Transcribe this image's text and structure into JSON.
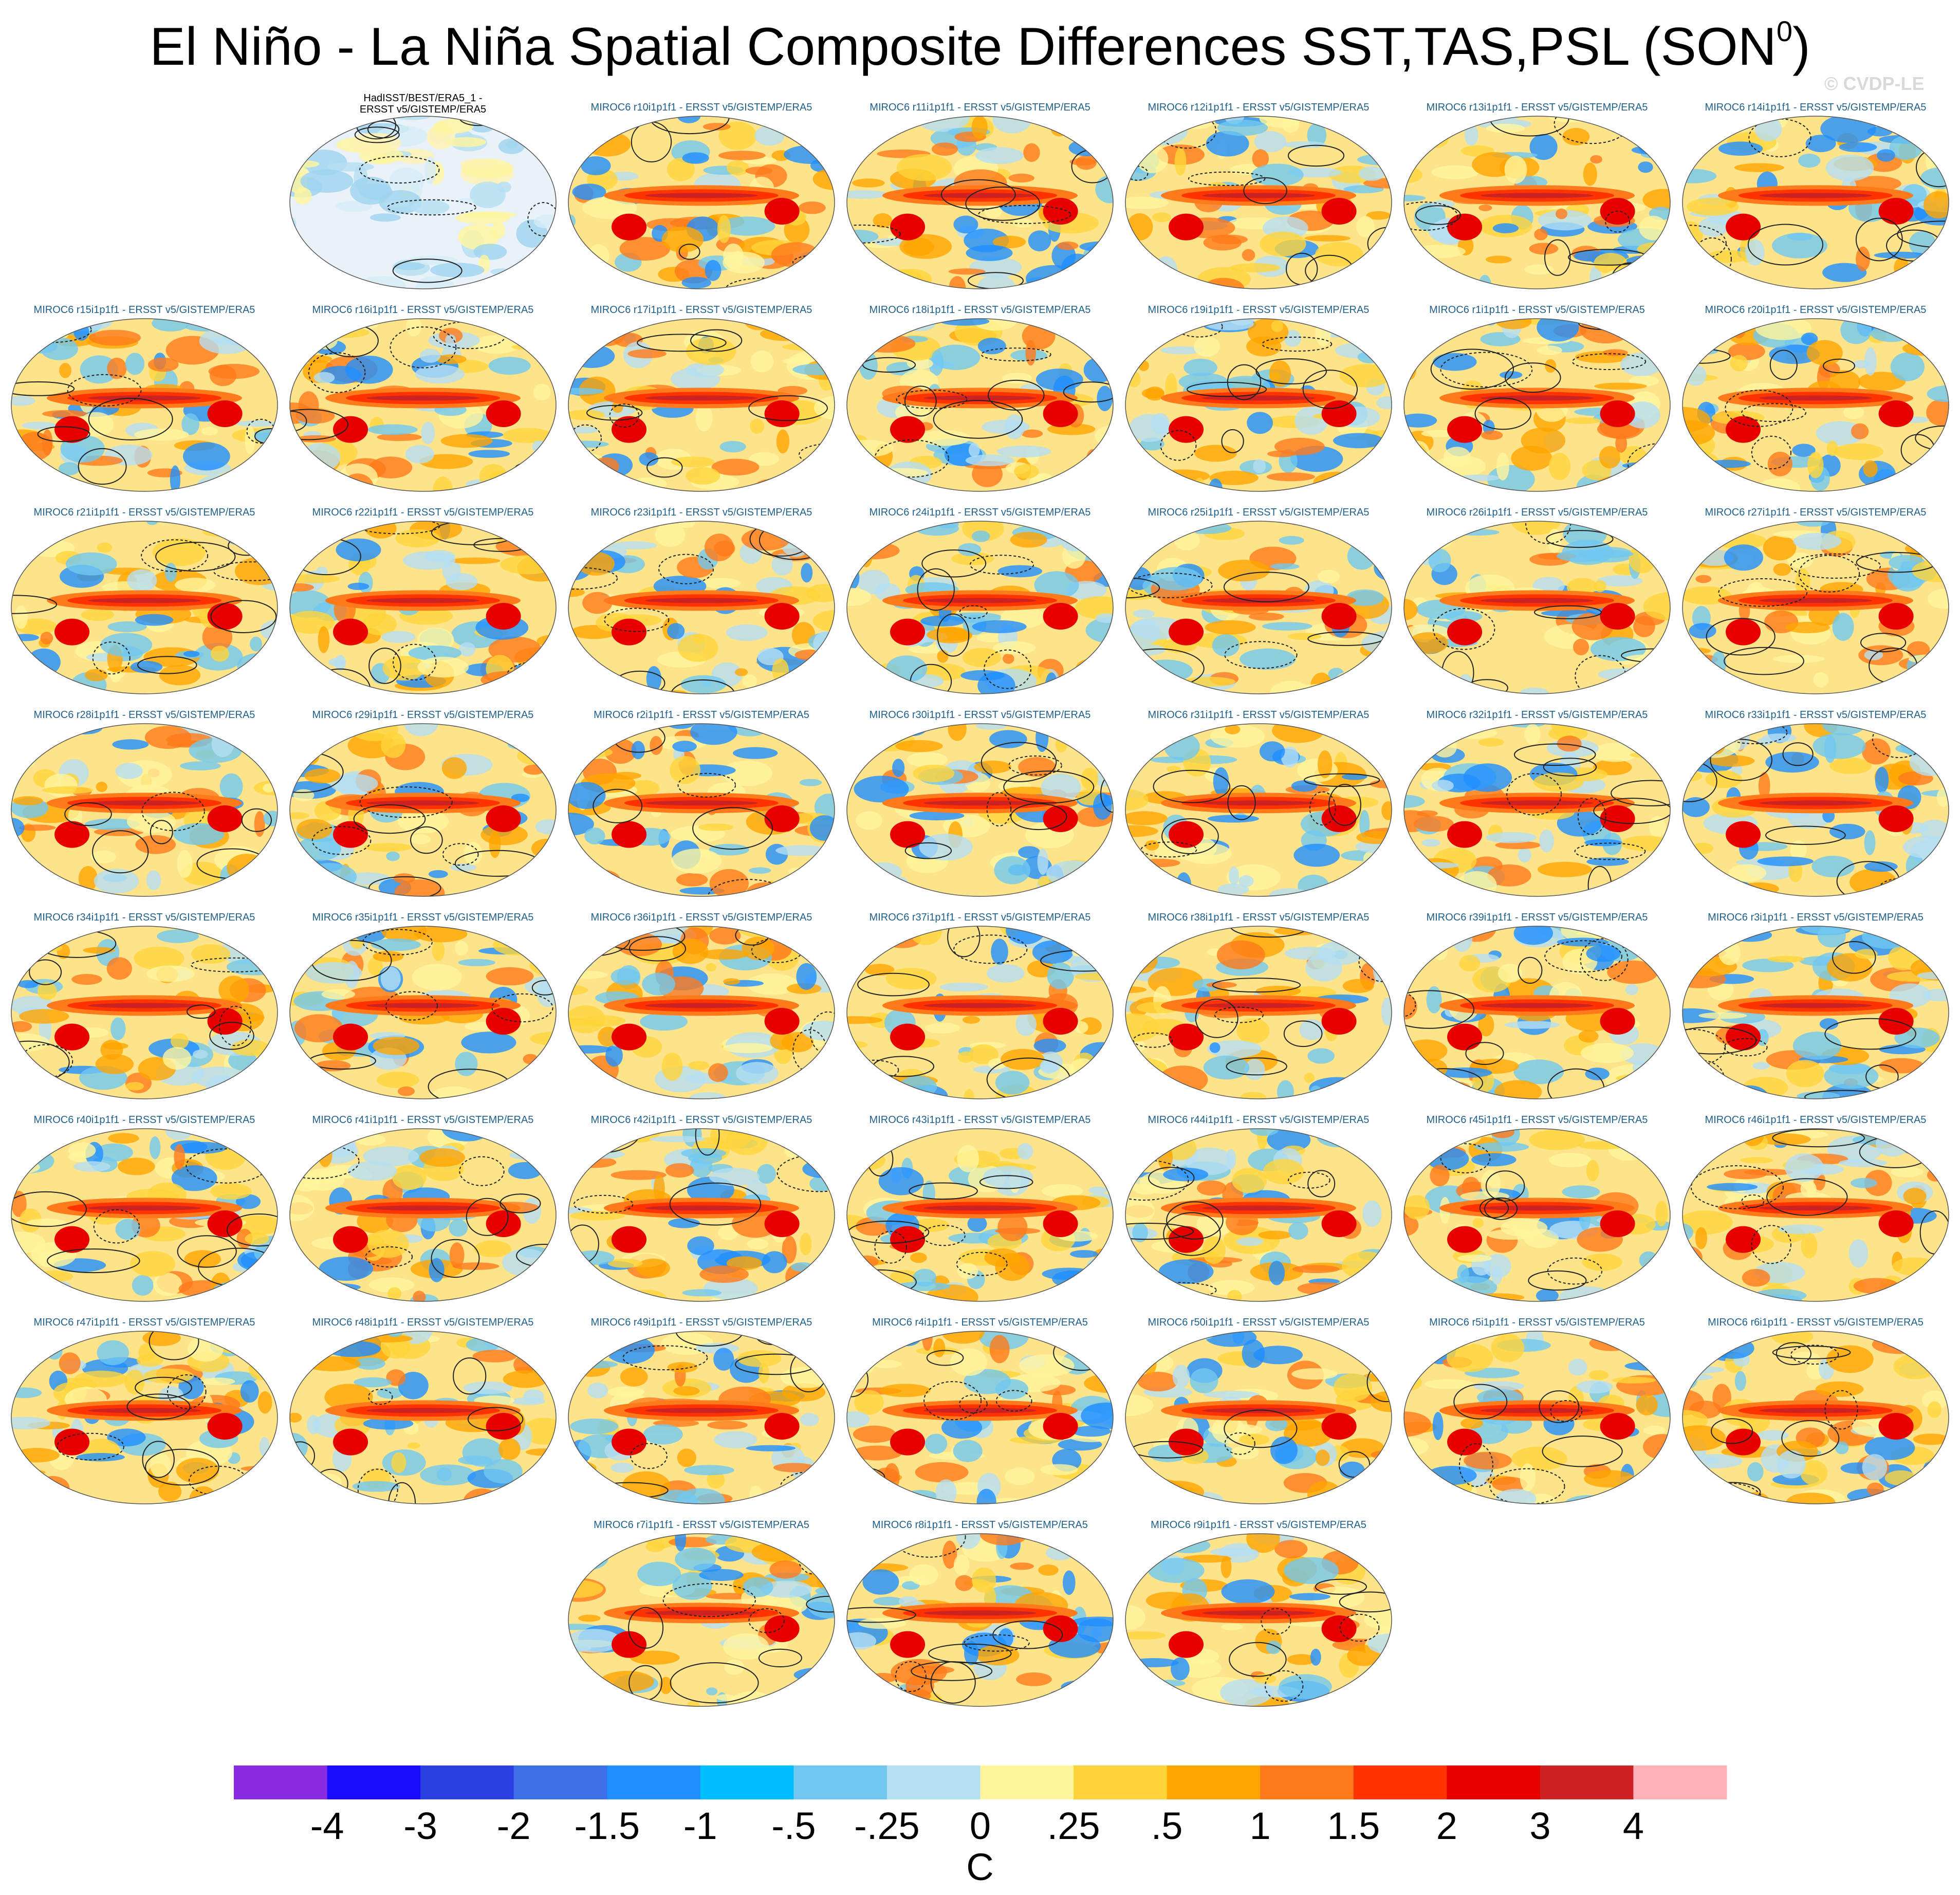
{
  "page_title": "El Niño - La Niña Spatial Composite Differences SST,TAS,PSL (SON",
  "page_title_superscript": "0",
  "page_title_close": ")",
  "watermark": "© CVDP-LE",
  "chart_data": {
    "type": "heatmap",
    "title": "El Niño - La Niña Spatial Composite Differences SST,TAS,PSL (SON0)",
    "panels": [
      {
        "title_line1": "HadISST/BEST/ERA5_1 -",
        "title_line2": "ERSST v5/GISTEMP/ERA5",
        "observational": true
      },
      {
        "title": "MIROC6 r10i1p1f1 - ERSST v5/GISTEMP/ERA5"
      },
      {
        "title": "MIROC6 r11i1p1f1 - ERSST v5/GISTEMP/ERA5"
      },
      {
        "title": "MIROC6 r12i1p1f1 - ERSST v5/GISTEMP/ERA5"
      },
      {
        "title": "MIROC6 r13i1p1f1 - ERSST v5/GISTEMP/ERA5"
      },
      {
        "title": "MIROC6 r14i1p1f1 - ERSST v5/GISTEMP/ERA5"
      },
      {
        "title": "MIROC6 r15i1p1f1 - ERSST v5/GISTEMP/ERA5"
      },
      {
        "title": "MIROC6 r16i1p1f1 - ERSST v5/GISTEMP/ERA5"
      },
      {
        "title": "MIROC6 r17i1p1f1 - ERSST v5/GISTEMP/ERA5"
      },
      {
        "title": "MIROC6 r18i1p1f1 - ERSST v5/GISTEMP/ERA5"
      },
      {
        "title": "MIROC6 r19i1p1f1 - ERSST v5/GISTEMP/ERA5"
      },
      {
        "title": "MIROC6 r1i1p1f1 - ERSST v5/GISTEMP/ERA5"
      },
      {
        "title": "MIROC6 r20i1p1f1 - ERSST v5/GISTEMP/ERA5"
      },
      {
        "title": "MIROC6 r21i1p1f1 - ERSST v5/GISTEMP/ERA5"
      },
      {
        "title": "MIROC6 r22i1p1f1 - ERSST v5/GISTEMP/ERA5"
      },
      {
        "title": "MIROC6 r23i1p1f1 - ERSST v5/GISTEMP/ERA5"
      },
      {
        "title": "MIROC6 r24i1p1f1 - ERSST v5/GISTEMP/ERA5"
      },
      {
        "title": "MIROC6 r25i1p1f1 - ERSST v5/GISTEMP/ERA5"
      },
      {
        "title": "MIROC6 r26i1p1f1 - ERSST v5/GISTEMP/ERA5"
      },
      {
        "title": "MIROC6 r27i1p1f1 - ERSST v5/GISTEMP/ERA5"
      },
      {
        "title": "MIROC6 r28i1p1f1 - ERSST v5/GISTEMP/ERA5"
      },
      {
        "title": "MIROC6 r29i1p1f1 - ERSST v5/GISTEMP/ERA5"
      },
      {
        "title": "MIROC6 r2i1p1f1 - ERSST v5/GISTEMP/ERA5"
      },
      {
        "title": "MIROC6 r30i1p1f1 - ERSST v5/GISTEMP/ERA5"
      },
      {
        "title": "MIROC6 r31i1p1f1 - ERSST v5/GISTEMP/ERA5"
      },
      {
        "title": "MIROC6 r32i1p1f1 - ERSST v5/GISTEMP/ERA5"
      },
      {
        "title": "MIROC6 r33i1p1f1 - ERSST v5/GISTEMP/ERA5"
      },
      {
        "title": "MIROC6 r34i1p1f1 - ERSST v5/GISTEMP/ERA5"
      },
      {
        "title": "MIROC6 r35i1p1f1 - ERSST v5/GISTEMP/ERA5"
      },
      {
        "title": "MIROC6 r36i1p1f1 - ERSST v5/GISTEMP/ERA5"
      },
      {
        "title": "MIROC6 r37i1p1f1 - ERSST v5/GISTEMP/ERA5"
      },
      {
        "title": "MIROC6 r38i1p1f1 - ERSST v5/GISTEMP/ERA5"
      },
      {
        "title": "MIROC6 r39i1p1f1 - ERSST v5/GISTEMP/ERA5"
      },
      {
        "title": "MIROC6 r3i1p1f1 - ERSST v5/GISTEMP/ERA5"
      },
      {
        "title": "MIROC6 r40i1p1f1 - ERSST v5/GISTEMP/ERA5"
      },
      {
        "title": "MIROC6 r41i1p1f1 - ERSST v5/GISTEMP/ERA5"
      },
      {
        "title": "MIROC6 r42i1p1f1 - ERSST v5/GISTEMP/ERA5"
      },
      {
        "title": "MIROC6 r43i1p1f1 - ERSST v5/GISTEMP/ERA5"
      },
      {
        "title": "MIROC6 r44i1p1f1 - ERSST v5/GISTEMP/ERA5"
      },
      {
        "title": "MIROC6 r45i1p1f1 - ERSST v5/GISTEMP/ERA5"
      },
      {
        "title": "MIROC6 r46i1p1f1 - ERSST v5/GISTEMP/ERA5"
      },
      {
        "title": "MIROC6 r47i1p1f1 - ERSST v5/GISTEMP/ERA5"
      },
      {
        "title": "MIROC6 r48i1p1f1 - ERSST v5/GISTEMP/ERA5"
      },
      {
        "title": "MIROC6 r49i1p1f1 - ERSST v5/GISTEMP/ERA5"
      },
      {
        "title": "MIROC6 r4i1p1f1 - ERSST v5/GISTEMP/ERA5"
      },
      {
        "title": "MIROC6 r50i1p1f1 - ERSST v5/GISTEMP/ERA5"
      },
      {
        "title": "MIROC6 r5i1p1f1 - ERSST v5/GISTEMP/ERA5"
      },
      {
        "title": "MIROC6 r6i1p1f1 - ERSST v5/GISTEMP/ERA5"
      },
      {
        "title": "MIROC6 r7i1p1f1 - ERSST v5/GISTEMP/ERA5"
      },
      {
        "title": "MIROC6 r8i1p1f1 - ERSST v5/GISTEMP/ERA5"
      },
      {
        "title": "MIROC6 r9i1p1f1 - ERSST v5/GISTEMP/ERA5"
      }
    ],
    "colorbar": {
      "unit": "C",
      "tick_labels": [
        "-4",
        "-3",
        "-2",
        "-1.5",
        "-1",
        "-.5",
        "-.25",
        "0",
        ".25",
        ".5",
        "1",
        "1.5",
        "2",
        "3",
        "4"
      ],
      "colors": [
        "#8a2be2",
        "#1a0dff",
        "#2a40e0",
        "#3d6fe6",
        "#1f8fff",
        "#00bfff",
        "#70c8f0",
        "#b5dff2",
        "#fff59d",
        "#ffd43b",
        "#ffa500",
        "#ff7a1a",
        "#ff3300",
        "#e60000",
        "#cc2222",
        "#ffb3b8"
      ]
    }
  }
}
